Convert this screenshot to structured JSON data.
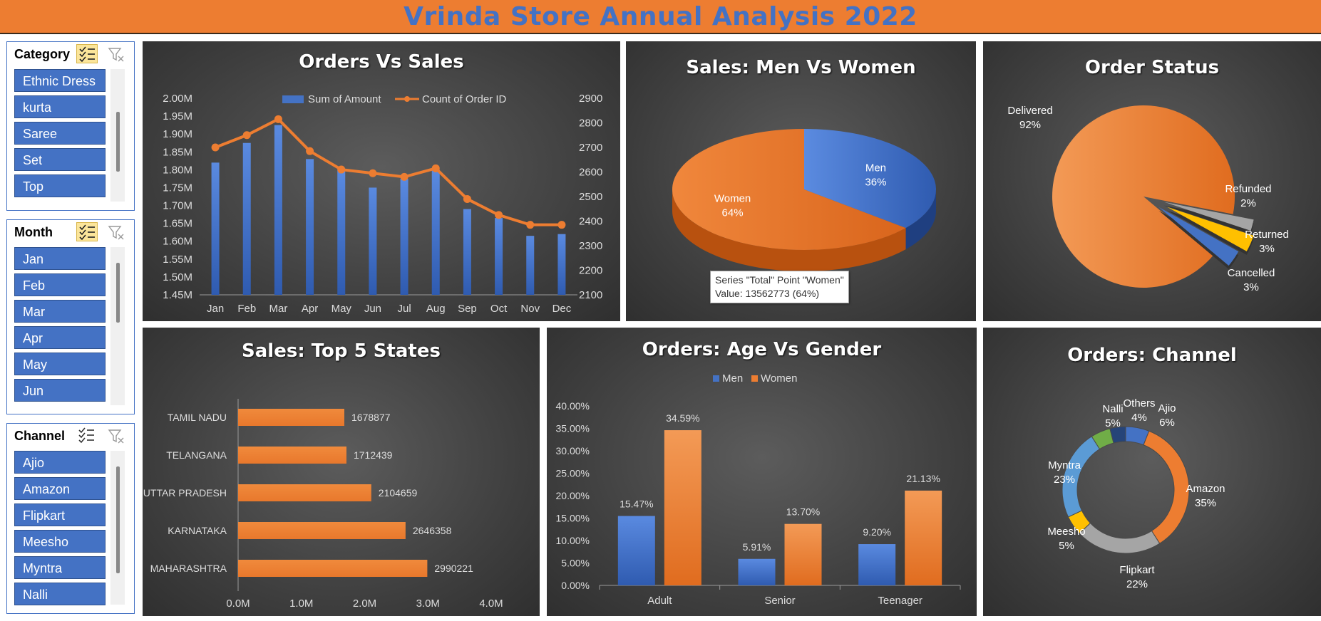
{
  "dashboard_title": "Vrinda Store Annual Analysis 2022",
  "colors": {
    "blue": "#4472c4",
    "orange": "#ed7d31",
    "yellow": "#ffc000",
    "grey": "#a5a5a5",
    "green": "#70ad47",
    "navy": "#264478",
    "lightblue": "#5b9bd5"
  },
  "slicers": [
    {
      "title": "Category",
      "multi_select_active": true,
      "items": [
        "Ethnic Dress",
        "kurta",
        "Saree",
        "Set",
        "Top"
      ]
    },
    {
      "title": "Month",
      "multi_select_active": true,
      "items": [
        "Jan",
        "Feb",
        "Mar",
        "Apr",
        "May",
        "Jun"
      ]
    },
    {
      "title": "Channel",
      "multi_select_active": false,
      "items": [
        "Ajio",
        "Amazon",
        "Flipkart",
        "Meesho",
        "Myntra",
        "Nalli"
      ]
    }
  ],
  "charts": {
    "orders_vs_sales": {
      "title": "Orders Vs Sales",
      "legend": [
        "Sum of Amount",
        "Count of Order ID"
      ]
    },
    "men_vs_women": {
      "title": "Sales: Men Vs Women",
      "tooltip_line1": "Series \"Total\" Point \"Women\"",
      "tooltip_line2": "Value: 13562773 (64%)"
    },
    "order_status": {
      "title": "Order Status"
    },
    "top_states": {
      "title": "Sales: Top 5 States"
    },
    "age_gender": {
      "title": "Orders: Age Vs Gender",
      "legend": [
        "Men",
        "Women"
      ]
    },
    "channel": {
      "title": "Orders: Channel"
    }
  },
  "chart_data": [
    {
      "id": "orders_vs_sales",
      "type": "bar",
      "title": "Orders Vs Sales",
      "categories": [
        "Jan",
        "Feb",
        "Mar",
        "Apr",
        "May",
        "Jun",
        "Jul",
        "Aug",
        "Sep",
        "Oct",
        "Nov",
        "Dec"
      ],
      "series": [
        {
          "name": "Sum of Amount",
          "type": "bar",
          "axis": "left",
          "values": [
            1.82,
            1.875,
            1.925,
            1.83,
            1.8,
            1.75,
            1.775,
            1.8,
            1.69,
            1.665,
            1.615,
            1.62
          ]
        },
        {
          "name": "Count of Order ID",
          "type": "line",
          "axis": "right",
          "values": [
            2700,
            2750,
            2815,
            2685,
            2610,
            2595,
            2580,
            2615,
            2490,
            2425,
            2385,
            2385
          ]
        }
      ],
      "y_left": {
        "ylim": [
          1.45,
          2.0
        ],
        "ticks": [
          "2.00M",
          "1.95M",
          "1.90M",
          "1.85M",
          "1.80M",
          "1.75M",
          "1.70M",
          "1.65M",
          "1.60M",
          "1.55M",
          "1.50M",
          "1.45M"
        ]
      },
      "y_right": {
        "ylim": [
          2100,
          2900
        ],
        "ticks": [
          "2900",
          "2800",
          "2700",
          "2600",
          "2500",
          "2400",
          "2300",
          "2200",
          "2100"
        ]
      },
      "legend_position": "top"
    },
    {
      "id": "men_vs_women",
      "type": "pie",
      "title": "Sales: Men Vs Women",
      "slices": [
        {
          "label": "Men",
          "value": 36,
          "label_text": "36%"
        },
        {
          "label": "Women",
          "value": 64,
          "label_text": "64%"
        }
      ]
    },
    {
      "id": "order_status",
      "type": "pie",
      "title": "Order Status",
      "slices": [
        {
          "label": "Delivered",
          "value": 92,
          "label_text": "92%"
        },
        {
          "label": "Refunded",
          "value": 2,
          "label_text": "2%"
        },
        {
          "label": "Returned",
          "value": 3,
          "label_text": "3%"
        },
        {
          "label": "Cancelled",
          "value": 3,
          "label_text": "3%"
        }
      ]
    },
    {
      "id": "top_states",
      "type": "bar",
      "orientation": "horizontal",
      "title": "Sales: Top 5 States",
      "categories": [
        "TAMIL NADU",
        "TELANGANA",
        "UTTAR PRADESH",
        "KARNATAKA",
        "MAHARASHTRA"
      ],
      "values": [
        1678877,
        1712439,
        2104659,
        2646358,
        2990221
      ],
      "xlim": [
        0,
        4000000
      ],
      "x_ticks": [
        "0.0M",
        "1.0M",
        "2.0M",
        "3.0M",
        "4.0M"
      ]
    },
    {
      "id": "age_gender",
      "type": "bar",
      "title": "Orders: Age Vs Gender",
      "categories": [
        "Adult",
        "Senior",
        "Teenager"
      ],
      "series": [
        {
          "name": "Men",
          "values": [
            15.47,
            5.91,
            9.2
          ],
          "labels": [
            "15.47%",
            "5.91%",
            "9.20%"
          ]
        },
        {
          "name": "Women",
          "values": [
            34.59,
            13.7,
            21.13
          ],
          "labels": [
            "34.59%",
            "13.70%",
            "21.13%"
          ]
        }
      ],
      "ylim": [
        0,
        40
      ],
      "y_ticks": [
        "40.00%",
        "35.00%",
        "30.00%",
        "25.00%",
        "20.00%",
        "15.00%",
        "10.00%",
        "5.00%",
        "0.00%"
      ],
      "legend_position": "top"
    },
    {
      "id": "channel",
      "type": "pie",
      "donut": true,
      "title": "Orders: Channel",
      "slices": [
        {
          "label": "Ajio",
          "value": 6,
          "label_text": "6%"
        },
        {
          "label": "Amazon",
          "value": 35,
          "label_text": "35%"
        },
        {
          "label": "Flipkart",
          "value": 22,
          "label_text": "22%"
        },
        {
          "label": "Meesho",
          "value": 5,
          "label_text": "5%"
        },
        {
          "label": "Myntra",
          "value": 23,
          "label_text": "23%"
        },
        {
          "label": "Nalli",
          "value": 5,
          "label_text": "5%"
        },
        {
          "label": "Others",
          "value": 4,
          "label_text": "4%"
        }
      ]
    }
  ]
}
